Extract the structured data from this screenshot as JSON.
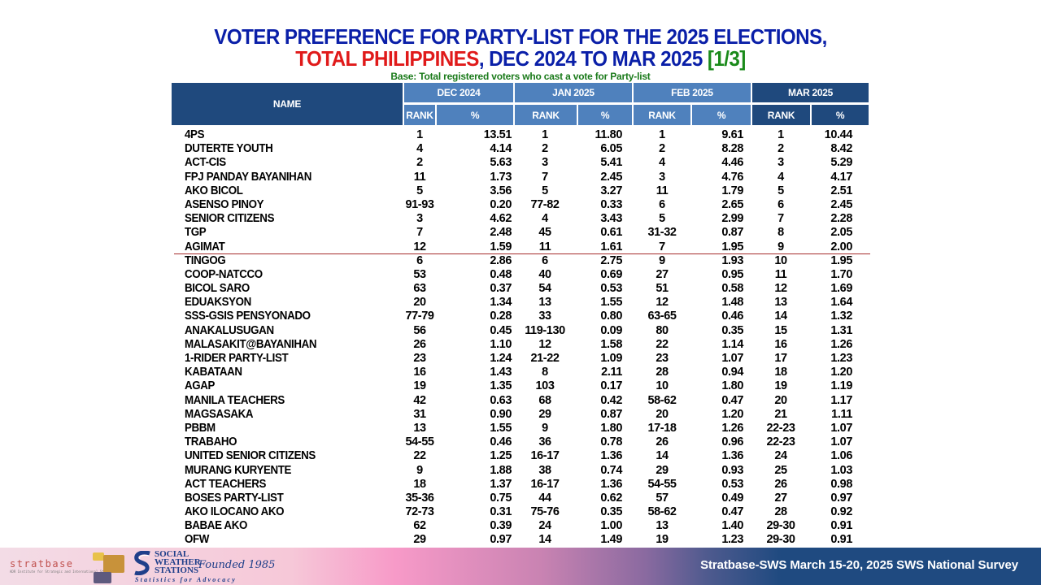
{
  "title": {
    "line1": "VOTER PREFERENCE FOR PARTY-LIST FOR THE 2025 ELECTIONS,",
    "line2_red": "TOTAL PHILIPPINES",
    "line2_blue": ", DEC 2024 TO MAR 2025 ",
    "line2_green": "[1/3]"
  },
  "base": "Base: Total registered voters who cast a vote for Party-list",
  "table": {
    "name_header": "NAME",
    "months": [
      "DEC 2024",
      "JAN 2025",
      "FEB 2025",
      "MAR 2025"
    ],
    "sub_rank": "RANK",
    "sub_pct": "%",
    "rows": [
      {
        "name": "4PS",
        "dec_rank": "1",
        "dec_pct": "13.51",
        "jan_rank": "1",
        "jan_pct": "11.80",
        "feb_rank": "1",
        "feb_pct": "9.61",
        "mar_rank": "1",
        "mar_pct": "10.44"
      },
      {
        "name": "DUTERTE YOUTH",
        "dec_rank": "4",
        "dec_pct": "4.14",
        "jan_rank": "2",
        "jan_pct": "6.05",
        "feb_rank": "2",
        "feb_pct": "8.28",
        "mar_rank": "2",
        "mar_pct": "8.42"
      },
      {
        "name": "ACT-CIS",
        "dec_rank": "2",
        "dec_pct": "5.63",
        "jan_rank": "3",
        "jan_pct": "5.41",
        "feb_rank": "4",
        "feb_pct": "4.46",
        "mar_rank": "3",
        "mar_pct": "5.29"
      },
      {
        "name": "FPJ PANDAY BAYANIHAN",
        "dec_rank": "11",
        "dec_pct": "1.73",
        "jan_rank": "7",
        "jan_pct": "2.45",
        "feb_rank": "3",
        "feb_pct": "4.76",
        "mar_rank": "4",
        "mar_pct": "4.17"
      },
      {
        "name": "AKO BICOL",
        "dec_rank": "5",
        "dec_pct": "3.56",
        "jan_rank": "5",
        "jan_pct": "3.27",
        "feb_rank": "11",
        "feb_pct": "1.79",
        "mar_rank": "5",
        "mar_pct": "2.51"
      },
      {
        "name": "ASENSO PINOY",
        "dec_rank": "91-93",
        "dec_pct": "0.20",
        "jan_rank": "77-82",
        "jan_pct": "0.33",
        "feb_rank": "6",
        "feb_pct": "2.65",
        "mar_rank": "6",
        "mar_pct": "2.45"
      },
      {
        "name": "SENIOR CITIZENS",
        "dec_rank": "3",
        "dec_pct": "4.62",
        "jan_rank": "4",
        "jan_pct": "3.43",
        "feb_rank": "5",
        "feb_pct": "2.99",
        "mar_rank": "7",
        "mar_pct": "2.28"
      },
      {
        "name": "TGP",
        "dec_rank": "7",
        "dec_pct": "2.48",
        "jan_rank": "45",
        "jan_pct": "0.61",
        "feb_rank": "31-32",
        "feb_pct": "0.87",
        "mar_rank": "8",
        "mar_pct": "2.05"
      },
      {
        "name": "AGIMAT",
        "dec_rank": "12",
        "dec_pct": "1.59",
        "jan_rank": "11",
        "jan_pct": "1.61",
        "feb_rank": "7",
        "feb_pct": "1.95",
        "mar_rank": "9",
        "mar_pct": "2.00"
      },
      {
        "name": "TINGOG",
        "dec_rank": "6",
        "dec_pct": "2.86",
        "jan_rank": "6",
        "jan_pct": "2.75",
        "feb_rank": "9",
        "feb_pct": "1.93",
        "mar_rank": "10",
        "mar_pct": "1.95"
      },
      {
        "name": "COOP-NATCCO",
        "dec_rank": "53",
        "dec_pct": "0.48",
        "jan_rank": "40",
        "jan_pct": "0.69",
        "feb_rank": "27",
        "feb_pct": "0.95",
        "mar_rank": "11",
        "mar_pct": "1.70"
      },
      {
        "name": "BICOL SARO",
        "dec_rank": "63",
        "dec_pct": "0.37",
        "jan_rank": "54",
        "jan_pct": "0.53",
        "feb_rank": "51",
        "feb_pct": "0.58",
        "mar_rank": "12",
        "mar_pct": "1.69"
      },
      {
        "name": "EDUAKSYON",
        "dec_rank": "20",
        "dec_pct": "1.34",
        "jan_rank": "13",
        "jan_pct": "1.55",
        "feb_rank": "12",
        "feb_pct": "1.48",
        "mar_rank": "13",
        "mar_pct": "1.64"
      },
      {
        "name": "SSS-GSIS PENSYONADO",
        "dec_rank": "77-79",
        "dec_pct": "0.28",
        "jan_rank": "33",
        "jan_pct": "0.80",
        "feb_rank": "63-65",
        "feb_pct": "0.46",
        "mar_rank": "14",
        "mar_pct": "1.32"
      },
      {
        "name": "ANAKALUSUGAN",
        "dec_rank": "56",
        "dec_pct": "0.45",
        "jan_rank": "119-130",
        "jan_pct": "0.09",
        "feb_rank": "80",
        "feb_pct": "0.35",
        "mar_rank": "15",
        "mar_pct": "1.31"
      },
      {
        "name": "MALASAKIT@BAYANIHAN",
        "dec_rank": "26",
        "dec_pct": "1.10",
        "jan_rank": "12",
        "jan_pct": "1.58",
        "feb_rank": "22",
        "feb_pct": "1.14",
        "mar_rank": "16",
        "mar_pct": "1.26"
      },
      {
        "name": "1-RIDER PARTY-LIST",
        "dec_rank": "23",
        "dec_pct": "1.24",
        "jan_rank": "21-22",
        "jan_pct": "1.09",
        "feb_rank": "23",
        "feb_pct": "1.07",
        "mar_rank": "17",
        "mar_pct": "1.23"
      },
      {
        "name": "KABATAAN",
        "dec_rank": "16",
        "dec_pct": "1.43",
        "jan_rank": "8",
        "jan_pct": "2.11",
        "feb_rank": "28",
        "feb_pct": "0.94",
        "mar_rank": "18",
        "mar_pct": "1.20"
      },
      {
        "name": "AGAP",
        "dec_rank": "19",
        "dec_pct": "1.35",
        "jan_rank": "103",
        "jan_pct": "0.17",
        "feb_rank": "10",
        "feb_pct": "1.80",
        "mar_rank": "19",
        "mar_pct": "1.19"
      },
      {
        "name": "MANILA TEACHERS",
        "dec_rank": "42",
        "dec_pct": "0.63",
        "jan_rank": "68",
        "jan_pct": "0.42",
        "feb_rank": "58-62",
        "feb_pct": "0.47",
        "mar_rank": "20",
        "mar_pct": "1.17"
      },
      {
        "name": "MAGSASAKA",
        "dec_rank": "31",
        "dec_pct": "0.90",
        "jan_rank": "29",
        "jan_pct": "0.87",
        "feb_rank": "20",
        "feb_pct": "1.20",
        "mar_rank": "21",
        "mar_pct": "1.11"
      },
      {
        "name": "PBBM",
        "dec_rank": "13",
        "dec_pct": "1.55",
        "jan_rank": "9",
        "jan_pct": "1.80",
        "feb_rank": "17-18",
        "feb_pct": "1.26",
        "mar_rank": "22-23",
        "mar_pct": "1.07"
      },
      {
        "name": "TRABAHO",
        "dec_rank": "54-55",
        "dec_pct": "0.46",
        "jan_rank": "36",
        "jan_pct": "0.78",
        "feb_rank": "26",
        "feb_pct": "0.96",
        "mar_rank": "22-23",
        "mar_pct": "1.07"
      },
      {
        "name": "UNITED SENIOR CITIZENS",
        "dec_rank": "22",
        "dec_pct": "1.25",
        "jan_rank": "16-17",
        "jan_pct": "1.36",
        "feb_rank": "14",
        "feb_pct": "1.36",
        "mar_rank": "24",
        "mar_pct": "1.06"
      },
      {
        "name": "MURANG KURYENTE",
        "dec_rank": "9",
        "dec_pct": "1.88",
        "jan_rank": "38",
        "jan_pct": "0.74",
        "feb_rank": "29",
        "feb_pct": "0.93",
        "mar_rank": "25",
        "mar_pct": "1.03"
      },
      {
        "name": "ACT TEACHERS",
        "dec_rank": "18",
        "dec_pct": "1.37",
        "jan_rank": "16-17",
        "jan_pct": "1.36",
        "feb_rank": "54-55",
        "feb_pct": "0.53",
        "mar_rank": "26",
        "mar_pct": "0.98"
      },
      {
        "name": "BOSES PARTY-LIST",
        "dec_rank": "35-36",
        "dec_pct": "0.75",
        "jan_rank": "44",
        "jan_pct": "0.62",
        "feb_rank": "57",
        "feb_pct": "0.49",
        "mar_rank": "27",
        "mar_pct": "0.97"
      },
      {
        "name": "AKO ILOCANO AKO",
        "dec_rank": "72-73",
        "dec_pct": "0.31",
        "jan_rank": "75-76",
        "jan_pct": "0.35",
        "feb_rank": "58-62",
        "feb_pct": "0.47",
        "mar_rank": "28",
        "mar_pct": "0.92"
      },
      {
        "name": "BABAE AKO",
        "dec_rank": "62",
        "dec_pct": "0.39",
        "jan_rank": "24",
        "jan_pct": "1.00",
        "feb_rank": "13",
        "feb_pct": "1.40",
        "mar_rank": "29-30",
        "mar_pct": "0.91"
      },
      {
        "name": "OFW",
        "dec_rank": "29",
        "dec_pct": "0.97",
        "jan_rank": "14",
        "jan_pct": "1.49",
        "feb_rank": "19",
        "feb_pct": "1.23",
        "mar_rank": "29-30",
        "mar_pct": "0.91"
      }
    ]
  },
  "footer": {
    "stratbase_logo": "stratbase",
    "stratbase_tagline": "ADR Institute for Strategic and International Studies",
    "sws_logo_lines": [
      "SOCIAL",
      "WEATHER",
      "STATIONS"
    ],
    "sws_founded": "Founded 1985",
    "sws_tagline": "Statistics for Advocacy",
    "source": "Stratbase-SWS March 15-20, 2025 SWS National Survey"
  },
  "colors": {
    "title_blue": "#0a1fa8",
    "title_red": "#e01a1a",
    "title_green": "#1a8a1a",
    "header_dark": "#1f497d",
    "header_light": "#4f81bd",
    "divider": "#a52a2a"
  }
}
